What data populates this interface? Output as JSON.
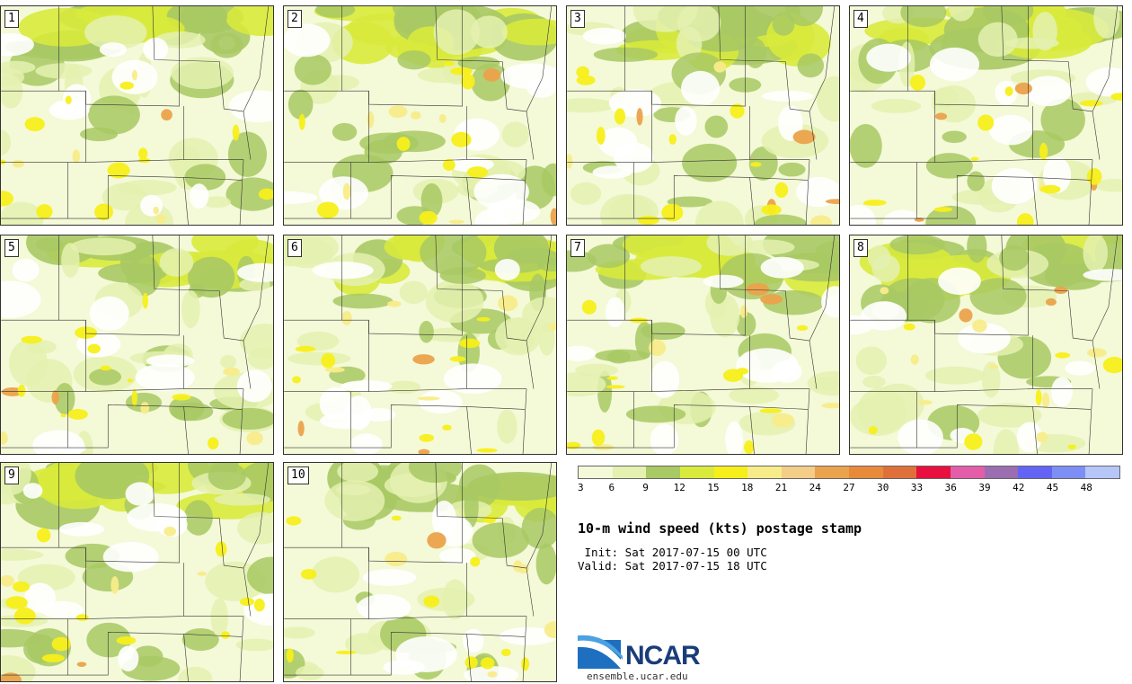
{
  "panels": [
    {
      "number": "1"
    },
    {
      "number": "2"
    },
    {
      "number": "3"
    },
    {
      "number": "4"
    },
    {
      "number": "5"
    },
    {
      "number": "6"
    },
    {
      "number": "7"
    },
    {
      "number": "8"
    },
    {
      "number": "9"
    },
    {
      "number": "10"
    }
  ],
  "colorbar": {
    "colors": [
      "#f4f9d8",
      "#e4f1b0",
      "#a8c964",
      "#d8ea3c",
      "#f7ef1a",
      "#f8ec8a",
      "#f4cd88",
      "#eba24c",
      "#e78a3a",
      "#e0703a",
      "#e8103e",
      "#e45da8",
      "#9a6eb0",
      "#6464f4",
      "#7d8ff4",
      "#b7c6f8"
    ],
    "labels": [
      "3",
      "6",
      "9",
      "12",
      "15",
      "18",
      "21",
      "24",
      "27",
      "30",
      "33",
      "36",
      "39",
      "42",
      "45",
      "48"
    ]
  },
  "title": "10-m wind speed (kts) postage stamp",
  "init_text": " Init: Sat 2017-07-15 00 UTC",
  "valid_text": "Valid: Sat 2017-07-15 18 UTC",
  "logo": {
    "text": "NCAR",
    "url": "ensemble.ucar.edu"
  }
}
